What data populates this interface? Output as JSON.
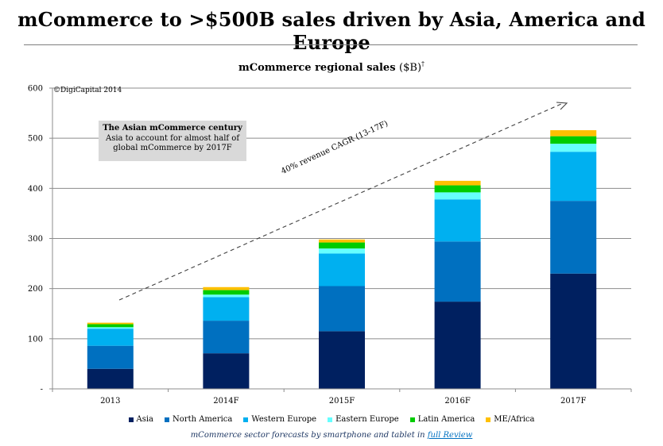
{
  "page": {
    "title": "mCommerce to >$500B sales driven by Asia, America and Europe",
    "copyright": "©DigiCapital 2014",
    "callout_heading": "The Asian mCommerce century",
    "callout_text": "Asia to account for almost half of global mCommerce by 2017F",
    "cagr_label": "40% revenue CAGR (13-17F)",
    "footer_text": "mCommerce sector forecasts by smartphone and tablet in ",
    "footer_link": "full Review"
  },
  "chart_data": {
    "type": "bar",
    "stacked": true,
    "title": "mCommerce regional sales",
    "title_unit": "($B)",
    "title_mark": "†",
    "categories": [
      "2013",
      "2014F",
      "2015F",
      "2016F",
      "2017F"
    ],
    "ylim": [
      0,
      600
    ],
    "yticks": [
      0,
      100,
      200,
      300,
      400,
      500,
      600
    ],
    "ytick_labels": [
      "-",
      "100",
      "200",
      "300",
      "400",
      "500",
      "600"
    ],
    "grid": true,
    "legend_position": "bottom",
    "series": [
      {
        "name": "Asia",
        "color": "#002060",
        "values": [
          40,
          71,
          115,
          174,
          230
        ]
      },
      {
        "name": "North America",
        "color": "#0070c0",
        "values": [
          46,
          65,
          90,
          120,
          145
        ]
      },
      {
        "name": "Western Europe",
        "color": "#00b0f0",
        "values": [
          34,
          47,
          65,
          84,
          98
        ]
      },
      {
        "name": "Eastern Europe",
        "color": "#66ffff",
        "values": [
          3,
          5,
          10,
          14,
          16
        ]
      },
      {
        "name": "Latin America",
        "color": "#00cc00",
        "values": [
          6,
          9,
          12,
          14,
          15
        ]
      },
      {
        "name": "ME/Africa",
        "color": "#ffc000",
        "values": [
          3,
          6,
          6,
          9,
          12
        ]
      }
    ]
  }
}
